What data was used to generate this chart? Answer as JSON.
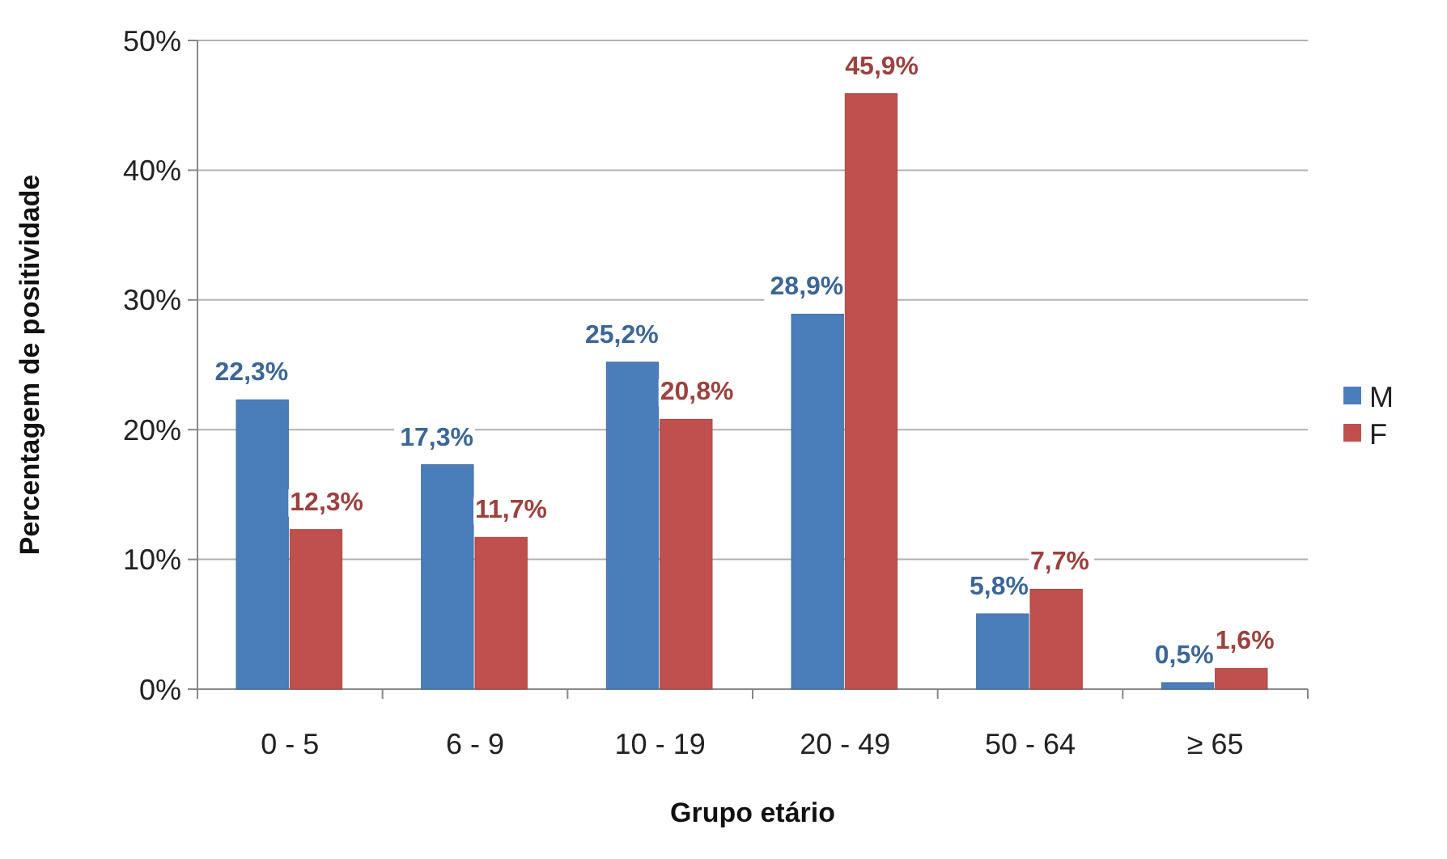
{
  "chart_data": {
    "type": "bar",
    "xlabel": "Grupo etário",
    "ylabel": "Percentagem de positividade",
    "categories": [
      "0 - 5",
      "6 - 9",
      "10 - 19",
      "20 - 49",
      "50 - 64",
      "≥ 65"
    ],
    "series": [
      {
        "name": "M",
        "color": "#4a7ebb",
        "values": [
          22.3,
          17.3,
          25.2,
          28.9,
          5.8,
          0.5
        ],
        "value_labels": [
          "22,3%",
          "17,3%",
          "25,2%",
          "28,9%",
          "5,8%",
          "0,5%"
        ]
      },
      {
        "name": "F",
        "color": "#c0504d",
        "values": [
          12.3,
          11.7,
          20.8,
          45.9,
          7.7,
          1.6
        ],
        "value_labels": [
          "12,3%",
          "11,7%",
          "20,8%",
          "45,9%",
          "7,7%",
          "1,6%"
        ]
      }
    ],
    "ylim": [
      0,
      50
    ],
    "yticks": [
      {
        "value": 0,
        "label": "0%"
      },
      {
        "value": 10,
        "label": "10%"
      },
      {
        "value": 20,
        "label": "20%"
      },
      {
        "value": 30,
        "label": "30%"
      },
      {
        "value": 40,
        "label": "40%"
      },
      {
        "value": 50,
        "label": "50%"
      }
    ],
    "grid": "y",
    "legend": "right"
  }
}
